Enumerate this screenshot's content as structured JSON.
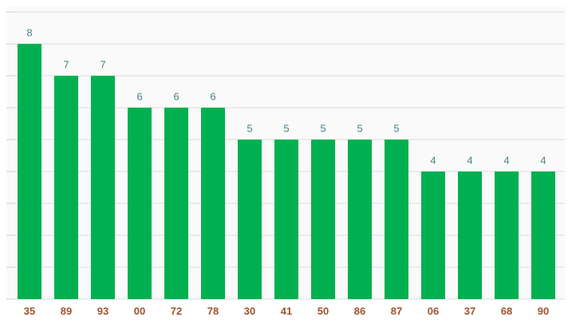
{
  "chart_data": {
    "type": "bar",
    "categories": [
      "35",
      "89",
      "93",
      "00",
      "72",
      "78",
      "30",
      "41",
      "50",
      "86",
      "87",
      "06",
      "37",
      "68",
      "90"
    ],
    "values": [
      8,
      7,
      7,
      6,
      6,
      6,
      5,
      5,
      5,
      5,
      5,
      4,
      4,
      4,
      4
    ],
    "color": "#00b050",
    "ylim": [
      0,
      9
    ],
    "yticks": [
      0,
      1,
      2,
      3,
      4,
      5,
      6,
      7,
      8,
      9
    ],
    "grid": true
  }
}
